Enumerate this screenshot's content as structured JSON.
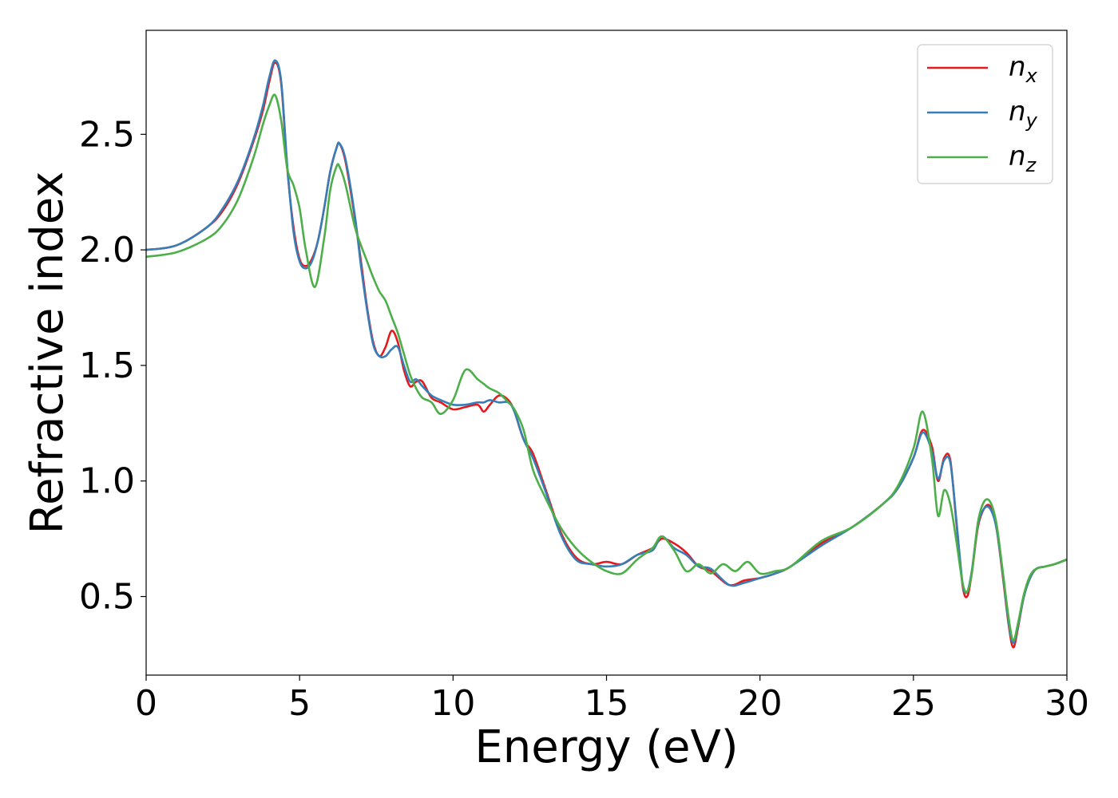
{
  "chart_data": {
    "type": "line",
    "title": "",
    "xlabel": "Energy (eV)",
    "ylabel": "Refractive index",
    "xlim": [
      0,
      30
    ],
    "ylim": [
      0.16,
      2.95
    ],
    "xticks": [
      0,
      5,
      10,
      15,
      20,
      25,
      30
    ],
    "xtick_labels": [
      "0",
      "5",
      "10",
      "15",
      "20",
      "25",
      "30"
    ],
    "yticks": [
      0.5,
      1.0,
      1.5,
      2.0,
      2.5
    ],
    "ytick_labels": [
      "0.5",
      "1.0",
      "1.5",
      "2.0",
      "2.5"
    ],
    "grid": false,
    "legend_position": "top-right",
    "series": [
      {
        "name": "n_x",
        "legend_base": "n",
        "legend_sub": "x",
        "color": "#e41a1c",
        "x": [
          0,
          1,
          2,
          2.5,
          3,
          3.5,
          3.8,
          4.0,
          4.2,
          4.4,
          4.6,
          4.8,
          5.0,
          5.2,
          5.4,
          5.6,
          5.8,
          6.0,
          6.2,
          6.3,
          6.5,
          6.8,
          7.0,
          7.2,
          7.4,
          7.6,
          7.8,
          8.0,
          8.2,
          8.4,
          8.6,
          8.8,
          9.0,
          9.3,
          9.6,
          10.0,
          10.4,
          10.8,
          11.0,
          11.2,
          11.5,
          11.8,
          12.0,
          12.3,
          12.6,
          13.0,
          13.5,
          14.0,
          14.5,
          15.0,
          15.5,
          16.0,
          16.5,
          16.8,
          17.2,
          17.6,
          18.0,
          18.4,
          19.0,
          19.5,
          20.0,
          20.5,
          21.0,
          22.0,
          23.0,
          24.0,
          24.5,
          25.0,
          25.3,
          25.6,
          25.8,
          26.0,
          26.2,
          26.4,
          26.6,
          26.75,
          26.9,
          27.1,
          27.3,
          27.5,
          27.7,
          27.9,
          28.1,
          28.25,
          28.4,
          28.6,
          28.8,
          29.0,
          29.3,
          29.6,
          30.0
        ],
        "values": [
          2.0,
          2.02,
          2.1,
          2.17,
          2.29,
          2.47,
          2.6,
          2.72,
          2.81,
          2.72,
          2.35,
          2.1,
          1.96,
          1.93,
          1.96,
          2.04,
          2.18,
          2.34,
          2.44,
          2.46,
          2.38,
          2.14,
          1.95,
          1.75,
          1.6,
          1.54,
          1.58,
          1.65,
          1.6,
          1.48,
          1.41,
          1.43,
          1.43,
          1.36,
          1.34,
          1.31,
          1.32,
          1.33,
          1.3,
          1.33,
          1.37,
          1.35,
          1.3,
          1.18,
          1.12,
          0.97,
          0.78,
          0.67,
          0.64,
          0.65,
          0.64,
          0.68,
          0.71,
          0.75,
          0.73,
          0.69,
          0.63,
          0.61,
          0.55,
          0.57,
          0.58,
          0.6,
          0.63,
          0.73,
          0.8,
          0.9,
          0.97,
          1.1,
          1.22,
          1.15,
          1.0,
          1.1,
          1.09,
          0.82,
          0.55,
          0.5,
          0.6,
          0.8,
          0.88,
          0.89,
          0.8,
          0.6,
          0.38,
          0.28,
          0.36,
          0.5,
          0.58,
          0.62,
          0.63,
          0.64,
          0.66
        ]
      },
      {
        "name": "n_y",
        "legend_base": "n",
        "legend_sub": "y",
        "color": "#377eb8",
        "x": [
          0,
          1,
          2,
          2.5,
          3,
          3.5,
          3.8,
          4.0,
          4.2,
          4.4,
          4.6,
          4.8,
          5.0,
          5.2,
          5.4,
          5.6,
          5.8,
          6.0,
          6.2,
          6.3,
          6.5,
          6.8,
          7.0,
          7.2,
          7.4,
          7.6,
          7.8,
          8.0,
          8.2,
          8.4,
          8.6,
          8.8,
          9.0,
          9.3,
          9.6,
          10.0,
          10.4,
          10.8,
          11.0,
          11.2,
          11.5,
          11.8,
          12.0,
          12.3,
          12.6,
          13.0,
          13.5,
          14.0,
          14.5,
          15.0,
          15.5,
          16.0,
          16.5,
          16.8,
          17.2,
          17.6,
          18.0,
          18.4,
          19.0,
          19.5,
          20.0,
          20.5,
          21.0,
          22.0,
          23.0,
          24.0,
          24.5,
          25.0,
          25.3,
          25.6,
          25.8,
          26.0,
          26.2,
          26.4,
          26.6,
          26.75,
          26.9,
          27.1,
          27.3,
          27.5,
          27.7,
          27.9,
          28.1,
          28.25,
          28.4,
          28.6,
          28.8,
          29.0,
          29.3,
          29.6,
          30.0
        ],
        "values": [
          2.0,
          2.02,
          2.1,
          2.18,
          2.3,
          2.48,
          2.62,
          2.74,
          2.82,
          2.73,
          2.36,
          2.08,
          1.95,
          1.92,
          1.95,
          2.04,
          2.18,
          2.34,
          2.44,
          2.46,
          2.39,
          2.15,
          1.93,
          1.74,
          1.59,
          1.54,
          1.54,
          1.57,
          1.58,
          1.5,
          1.43,
          1.44,
          1.41,
          1.37,
          1.35,
          1.33,
          1.33,
          1.34,
          1.34,
          1.35,
          1.34,
          1.34,
          1.3,
          1.18,
          1.1,
          0.96,
          0.77,
          0.66,
          0.64,
          0.63,
          0.64,
          0.68,
          0.7,
          0.76,
          0.71,
          0.68,
          0.63,
          0.62,
          0.55,
          0.56,
          0.58,
          0.6,
          0.63,
          0.72,
          0.8,
          0.9,
          0.97,
          1.1,
          1.21,
          1.13,
          1.01,
          1.09,
          1.08,
          0.83,
          0.56,
          0.52,
          0.61,
          0.81,
          0.88,
          0.88,
          0.8,
          0.61,
          0.39,
          0.3,
          0.37,
          0.5,
          0.58,
          0.62,
          0.63,
          0.64,
          0.66
        ]
      },
      {
        "name": "n_z",
        "legend_base": "n",
        "legend_sub": "z",
        "color": "#4daf4a",
        "x": [
          0,
          1,
          2,
          2.5,
          3,
          3.5,
          3.8,
          4.0,
          4.2,
          4.4,
          4.6,
          4.8,
          5.0,
          5.2,
          5.5,
          5.8,
          6.0,
          6.2,
          6.3,
          6.5,
          6.8,
          7.0,
          7.2,
          7.4,
          7.6,
          7.8,
          8.0,
          8.2,
          8.4,
          8.6,
          8.8,
          9.0,
          9.3,
          9.6,
          10.0,
          10.4,
          10.8,
          11.0,
          11.2,
          11.5,
          11.8,
          12.0,
          12.3,
          12.6,
          13.0,
          13.5,
          14.0,
          14.5,
          15.0,
          15.5,
          16.0,
          16.5,
          16.8,
          17.2,
          17.6,
          18.0,
          18.4,
          18.8,
          19.2,
          19.6,
          20.0,
          20.5,
          21.0,
          22.0,
          23.0,
          24.0,
          24.5,
          25.0,
          25.3,
          25.6,
          25.8,
          26.0,
          26.2,
          26.4,
          26.6,
          26.75,
          26.9,
          27.1,
          27.3,
          27.5,
          27.7,
          27.9,
          28.1,
          28.25,
          28.4,
          28.6,
          28.8,
          29.0,
          29.3,
          29.6,
          30.0
        ],
        "values": [
          1.97,
          1.99,
          2.05,
          2.11,
          2.22,
          2.4,
          2.54,
          2.62,
          2.67,
          2.56,
          2.35,
          2.28,
          2.18,
          2.0,
          1.84,
          2.05,
          2.26,
          2.36,
          2.36,
          2.28,
          2.1,
          2.02,
          1.95,
          1.88,
          1.82,
          1.78,
          1.71,
          1.64,
          1.55,
          1.46,
          1.4,
          1.36,
          1.34,
          1.29,
          1.35,
          1.48,
          1.44,
          1.42,
          1.4,
          1.38,
          1.34,
          1.31,
          1.22,
          1.05,
          0.93,
          0.8,
          0.71,
          0.65,
          0.61,
          0.6,
          0.66,
          0.71,
          0.76,
          0.7,
          0.61,
          0.64,
          0.6,
          0.64,
          0.61,
          0.65,
          0.6,
          0.61,
          0.63,
          0.74,
          0.8,
          0.9,
          0.98,
          1.14,
          1.3,
          1.1,
          0.85,
          0.96,
          0.9,
          0.74,
          0.56,
          0.52,
          0.6,
          0.82,
          0.91,
          0.91,
          0.82,
          0.62,
          0.41,
          0.31,
          0.38,
          0.51,
          0.59,
          0.62,
          0.63,
          0.64,
          0.66
        ]
      }
    ]
  }
}
